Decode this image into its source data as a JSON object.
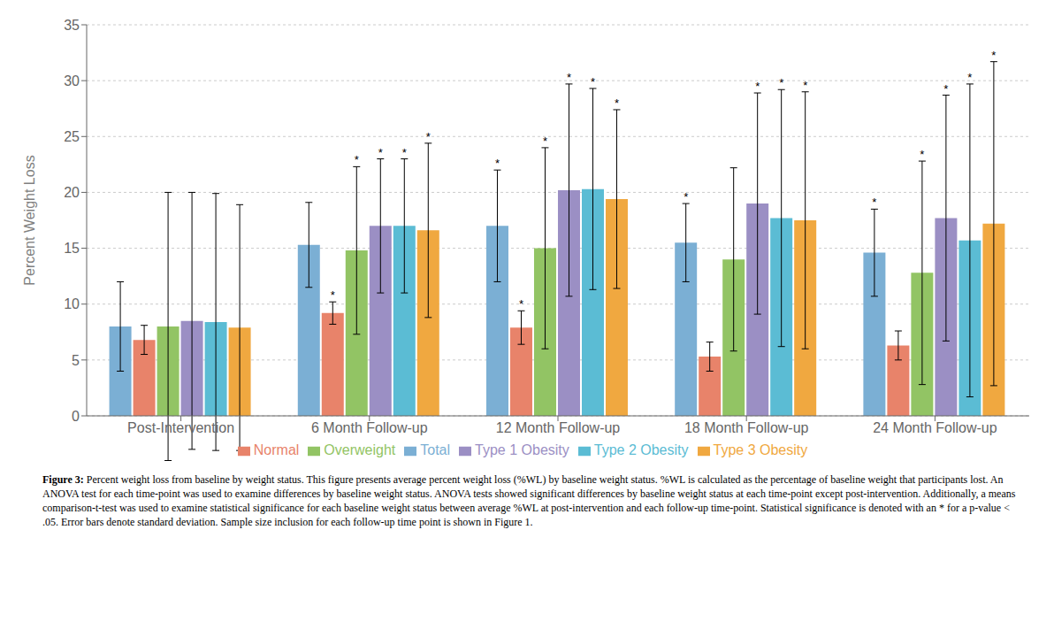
{
  "chart_data": {
    "type": "bar",
    "categories": [
      "Post-Intervention",
      "6 Month Follow-up",
      "12 Month Follow-up",
      "18 Month Follow-up",
      "24 Month Follow-up"
    ],
    "series": [
      {
        "name": "Total",
        "color": "#7bafd4",
        "values": [
          8.0,
          15.3,
          17.0,
          15.5,
          14.6
        ],
        "errors": [
          4.0,
          3.8,
          5.0,
          3.5,
          3.9
        ],
        "significant": [
          false,
          false,
          true,
          true,
          true
        ]
      },
      {
        "name": "Normal",
        "color": "#e8836a",
        "values": [
          6.8,
          9.2,
          7.9,
          5.3,
          6.3
        ],
        "errors": [
          1.3,
          1.0,
          1.5,
          1.3,
          1.3
        ],
        "significant": [
          false,
          true,
          true,
          false,
          false
        ]
      },
      {
        "name": "Overweight",
        "color": "#92c464",
        "values": [
          8.0,
          14.8,
          15.0,
          14.0,
          12.8
        ],
        "errors": [
          12.0,
          7.5,
          9.0,
          8.2,
          10.0
        ],
        "significant": [
          false,
          true,
          true,
          false,
          true
        ]
      },
      {
        "name": "Type 1 Obesity",
        "color": "#9b8fc4",
        "values": [
          8.5,
          17.0,
          20.2,
          19.0,
          17.7
        ],
        "errors": [
          11.5,
          6.0,
          9.5,
          9.9,
          11.0
        ],
        "significant": [
          false,
          true,
          true,
          true,
          true
        ]
      },
      {
        "name": "Type 2 Obesity",
        "color": "#5bbcd4",
        "values": [
          8.4,
          17.0,
          20.3,
          17.7,
          15.7
        ],
        "errors": [
          11.5,
          6.0,
          9.0,
          11.5,
          14.0
        ],
        "significant": [
          false,
          true,
          true,
          true,
          true
        ]
      },
      {
        "name": "Type 3 Obesity",
        "color": "#f0a840",
        "values": [
          7.9,
          16.6,
          19.4,
          17.5,
          17.2
        ],
        "errors": [
          11.0,
          7.8,
          8.0,
          11.5,
          14.5
        ],
        "significant": [
          false,
          true,
          true,
          true,
          true
        ]
      }
    ],
    "ylabel": "Percent Weight Loss",
    "ylim": [
      0,
      35
    ],
    "yticks": [
      0,
      5,
      10,
      15,
      20,
      25,
      30,
      35
    ],
    "grid": true,
    "significance_marker": "*",
    "caption_label": "Figure 3:",
    "caption": "Percent weight loss from baseline by weight status. This figure presents average percent weight loss (%WL) by baseline weight status. %WL is calculated as the percentage of baseline weight that participants lost. An ANOVA test for each time-point was used to examine differences by baseline weight status. ANOVA tests showed significant differences by baseline weight status at each time-point except post-intervention. Additionally, a means comparison-t-test was used to examine statistical significance for each baseline weight status between average %WL at post-intervention and each follow-up time-point. Statistical significance is denoted with an * for a p-value < .05. Error bars denote standard deviation. Sample size inclusion for each follow-up time point is shown in Figure 1."
  }
}
